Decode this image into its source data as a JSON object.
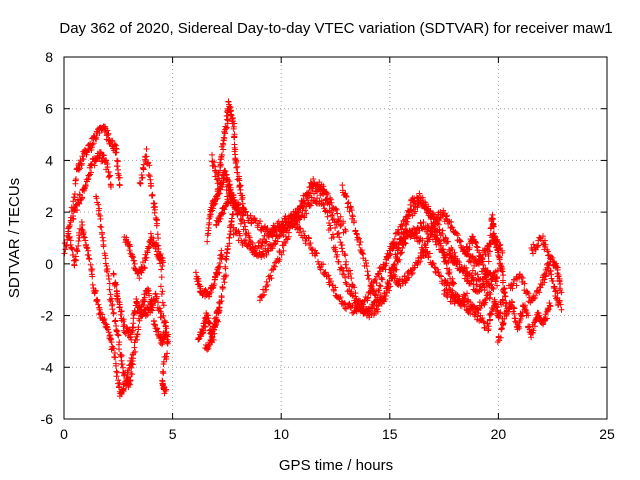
{
  "chart_data": {
    "type": "scatter",
    "title": "Day 362 of 2020, Sidereal Day-to-day VTEC variation (SDTVAR) for receiver maw1",
    "xlabel": "GPS time / hours",
    "ylabel": "SDTVAR / TECUs",
    "xlim": [
      0,
      25
    ],
    "ylim": [
      -6,
      8
    ],
    "x_ticks": [
      0,
      5,
      10,
      15,
      20,
      25
    ],
    "y_ticks": [
      -6,
      -4,
      -2,
      0,
      2,
      4,
      6,
      8
    ],
    "x_tick_labels": [
      "0",
      "5",
      "10",
      "15",
      "20",
      "25"
    ],
    "y_tick_labels": [
      "-6",
      "-4",
      "-2",
      "0",
      "2",
      "4",
      "6",
      "8"
    ],
    "grid": true,
    "marker": "+",
    "color": "#ff0000",
    "series": [
      {
        "name": "maw1",
        "approx_tracks": [
          [
            [
              0.0,
              0.5
            ],
            [
              0.3,
              1.5
            ],
            [
              0.6,
              3.5
            ],
            [
              0.9,
              4.2
            ],
            [
              1.2,
              4.5
            ],
            [
              1.5,
              5.0
            ],
            [
              1.8,
              5.3
            ],
            [
              2.1,
              4.8
            ],
            [
              2.4,
              4.4
            ],
            [
              2.6,
              3.0
            ]
          ],
          [
            [
              0.4,
              1.8
            ],
            [
              0.7,
              2.5
            ],
            [
              1.0,
              3.0
            ],
            [
              1.3,
              3.9
            ],
            [
              1.6,
              4.2
            ],
            [
              1.9,
              4.0
            ],
            [
              2.2,
              3.0
            ]
          ],
          [
            [
              0.2,
              1.2
            ],
            [
              0.5,
              0.0
            ],
            [
              0.8,
              1.5
            ],
            [
              1.1,
              0.5
            ],
            [
              1.4,
              -1.0
            ],
            [
              1.7,
              -2.0
            ],
            [
              2.0,
              -2.5
            ],
            [
              2.3,
              -3.5
            ],
            [
              2.6,
              -5.0
            ],
            [
              2.9,
              -4.5
            ],
            [
              3.2,
              -3.5
            ]
          ],
          [
            [
              1.5,
              2.5
            ],
            [
              1.8,
              1.0
            ],
            [
              2.1,
              -1.0
            ],
            [
              2.4,
              -2.5
            ],
            [
              2.7,
              -4.0
            ],
            [
              3.0,
              -4.8
            ],
            [
              3.3,
              -3.0
            ],
            [
              3.6,
              -1.5
            ],
            [
              3.9,
              -1.0
            ],
            [
              4.2,
              -2.5
            ],
            [
              4.5,
              -3.0
            ],
            [
              4.7,
              -2.5
            ]
          ],
          [
            [
              2.8,
              1.0
            ],
            [
              3.1,
              0.5
            ],
            [
              3.4,
              -0.5
            ],
            [
              3.7,
              0.0
            ],
            [
              4.0,
              1.0
            ],
            [
              4.3,
              0.5
            ],
            [
              4.6,
              0.0
            ]
          ],
          [
            [
              3.5,
              3.0
            ],
            [
              3.8,
              4.3
            ],
            [
              4.1,
              2.5
            ],
            [
              4.3,
              1.5
            ],
            [
              4.6,
              -2.0
            ],
            [
              4.8,
              -3.0
            ],
            [
              4.5,
              -4.5
            ],
            [
              4.7,
              -5.0
            ]
          ],
          [
            [
              2.3,
              -0.5
            ],
            [
              2.5,
              -1.5
            ],
            [
              2.8,
              -2.5
            ],
            [
              3.1,
              -2.8
            ],
            [
              3.3,
              -1.5
            ],
            [
              3.6,
              -2.0
            ],
            [
              3.9,
              -1.8
            ],
            [
              4.2,
              -1.2
            ],
            [
              4.5,
              -2.2
            ]
          ],
          [
            [
              6.1,
              -0.5
            ],
            [
              6.3,
              -1.0
            ],
            [
              6.6,
              -1.2
            ],
            [
              6.9,
              -0.8
            ],
            [
              7.1,
              -0.3
            ],
            [
              7.3,
              0.5
            ]
          ],
          [
            [
              6.2,
              -3.0
            ],
            [
              6.4,
              -2.5
            ],
            [
              6.6,
              -2.0
            ],
            [
              6.8,
              -2.8
            ],
            [
              7.0,
              -2.2
            ],
            [
              7.2,
              -1.5
            ]
          ],
          [
            [
              6.5,
              -3.3
            ],
            [
              6.8,
              -3.0
            ],
            [
              7.1,
              -2.0
            ],
            [
              7.4,
              -0.5
            ],
            [
              7.6,
              1.0
            ],
            [
              7.8,
              2.0
            ]
          ],
          [
            [
              6.6,
              1.0
            ],
            [
              6.8,
              2.2
            ],
            [
              7.0,
              2.5
            ],
            [
              7.2,
              3.0
            ],
            [
              7.4,
              3.5
            ],
            [
              7.6,
              3.0
            ],
            [
              7.8,
              2.5
            ],
            [
              8.0,
              2.0
            ]
          ],
          [
            [
              6.8,
              4.1
            ],
            [
              7.1,
              3.2
            ],
            [
              7.3,
              4.5
            ],
            [
              7.5,
              5.5
            ],
            [
              7.6,
              6.2
            ],
            [
              7.8,
              5.5
            ],
            [
              7.9,
              4.0
            ],
            [
              8.1,
              3.0
            ],
            [
              8.3,
              2.0
            ]
          ],
          [
            [
              7.0,
              1.5
            ],
            [
              7.3,
              2.0
            ],
            [
              7.6,
              2.5
            ],
            [
              8.0,
              2.2
            ],
            [
              8.5,
              1.8
            ],
            [
              9.0,
              1.5
            ],
            [
              9.5,
              1.2
            ],
            [
              10.0,
              1.3
            ],
            [
              10.5,
              1.6
            ],
            [
              11.0,
              1.9
            ],
            [
              11.5,
              2.6
            ],
            [
              12.0,
              2.2
            ],
            [
              12.5,
              0.5
            ],
            [
              13.0,
              -0.8
            ],
            [
              13.5,
              -1.6
            ],
            [
              14.0,
              -1.9
            ],
            [
              14.5,
              -1.7
            ],
            [
              15.0,
              -0.8
            ],
            [
              15.5,
              0.5
            ],
            [
              16.0,
              1.3
            ],
            [
              16.5,
              1.5
            ],
            [
              17.0,
              1.1
            ],
            [
              17.5,
              0.4
            ],
            [
              18.0,
              0.0
            ],
            [
              18.5,
              -0.3
            ],
            [
              19.0,
              -0.5
            ],
            [
              19.5,
              -0.4
            ],
            [
              20.0,
              -0.7
            ]
          ],
          [
            [
              7.5,
              2.8
            ],
            [
              8.0,
              2.0
            ],
            [
              8.5,
              1.0
            ],
            [
              9.0,
              0.3
            ],
            [
              9.5,
              0.6
            ],
            [
              10.0,
              1.2
            ],
            [
              10.5,
              1.8
            ],
            [
              11.0,
              2.3
            ],
            [
              11.5,
              3.0
            ],
            [
              12.0,
              2.7
            ],
            [
              12.5,
              1.5
            ],
            [
              13.0,
              0.0
            ],
            [
              13.5,
              -1.5
            ],
            [
              14.0,
              -2.0
            ],
            [
              14.5,
              -1.0
            ],
            [
              15.0,
              0.5
            ],
            [
              15.5,
              1.5
            ],
            [
              16.0,
              2.0
            ],
            [
              16.5,
              2.4
            ],
            [
              17.0,
              1.8
            ],
            [
              17.5,
              1.0
            ],
            [
              18.0,
              0.2
            ],
            [
              18.5,
              -0.5
            ],
            [
              19.0,
              -1.0
            ],
            [
              19.5,
              -0.8
            ],
            [
              20.0,
              -0.3
            ]
          ],
          [
            [
              7.8,
              1.3
            ],
            [
              8.3,
              0.8
            ],
            [
              8.8,
              0.5
            ],
            [
              9.3,
              1.0
            ],
            [
              9.8,
              1.5
            ],
            [
              10.3,
              1.8
            ],
            [
              10.8,
              1.4
            ],
            [
              11.3,
              0.8
            ],
            [
              11.8,
              0.0
            ],
            [
              12.3,
              -0.8
            ],
            [
              12.8,
              -1.5
            ],
            [
              13.3,
              -1.8
            ],
            [
              13.8,
              -1.5
            ],
            [
              14.3,
              -0.8
            ],
            [
              14.8,
              0.2
            ],
            [
              15.3,
              0.8
            ],
            [
              15.8,
              1.2
            ],
            [
              16.3,
              1.0
            ],
            [
              16.8,
              0.3
            ],
            [
              17.3,
              -0.5
            ],
            [
              17.8,
              -1.0
            ],
            [
              18.3,
              -1.5
            ],
            [
              18.8,
              -1.8
            ],
            [
              19.3,
              -1.5
            ],
            [
              19.8,
              -1.0
            ]
          ],
          [
            [
              9.0,
              -1.5
            ],
            [
              9.5,
              -0.5
            ],
            [
              10.0,
              0.5
            ],
            [
              10.5,
              1.5
            ],
            [
              11.0,
              2.5
            ],
            [
              11.5,
              3.2
            ],
            [
              12.0,
              2.8
            ],
            [
              12.5,
              2.0
            ],
            [
              13.0,
              1.2
            ]
          ],
          [
            [
              12.8,
              3.0
            ],
            [
              13.2,
              2.0
            ],
            [
              13.6,
              0.8
            ],
            [
              14.0,
              -0.5
            ],
            [
              14.4,
              -1.5
            ],
            [
              14.8,
              -1.2
            ],
            [
              15.2,
              0.0
            ],
            [
              15.6,
              1.2
            ],
            [
              16.0,
              2.4
            ],
            [
              16.4,
              2.6
            ],
            [
              16.8,
              2.0
            ],
            [
              17.2,
              1.0
            ],
            [
              17.6,
              0.0
            ],
            [
              18.0,
              -1.0
            ]
          ],
          [
            [
              15.0,
              -0.3
            ],
            [
              15.4,
              -0.8
            ],
            [
              15.8,
              -0.5
            ],
            [
              16.2,
              0.0
            ],
            [
              16.6,
              0.5
            ],
            [
              17.0,
              1.5
            ],
            [
              17.4,
              2.0
            ],
            [
              17.8,
              1.5
            ],
            [
              18.2,
              0.8
            ],
            [
              18.6,
              0.3
            ],
            [
              19.0,
              0.0
            ],
            [
              19.4,
              0.5
            ],
            [
              19.8,
              1.0
            ],
            [
              20.2,
              0.5
            ]
          ],
          [
            [
              17.5,
              -1.0
            ],
            [
              18.0,
              -1.5
            ],
            [
              18.5,
              -1.2
            ],
            [
              19.0,
              -2.0
            ],
            [
              19.5,
              -2.5
            ],
            [
              19.8,
              -1.5
            ],
            [
              20.0,
              -2.0
            ],
            [
              20.3,
              -1.0
            ]
          ],
          [
            [
              18.5,
              0.5
            ],
            [
              18.8,
              1.0
            ],
            [
              19.2,
              0.2
            ],
            [
              19.5,
              -0.5
            ],
            [
              19.7,
              2.0
            ],
            [
              19.8,
              1.0
            ],
            [
              20.0,
              0.5
            ],
            [
              20.2,
              -0.5
            ],
            [
              20.4,
              -2.0
            ]
          ],
          [
            [
              20.0,
              -3.0
            ],
            [
              20.3,
              -2.0
            ],
            [
              20.6,
              -1.5
            ],
            [
              20.9,
              -2.5
            ],
            [
              21.2,
              -1.5
            ],
            [
              21.5,
              -2.8
            ],
            [
              21.8,
              -2.0
            ],
            [
              22.1,
              -2.2
            ],
            [
              22.4,
              -1.5
            ]
          ],
          [
            [
              20.5,
              -1.0
            ],
            [
              21.0,
              -0.5
            ],
            [
              21.5,
              -1.5
            ],
            [
              22.0,
              -0.8
            ],
            [
              22.3,
              0.0
            ],
            [
              22.6,
              -1.0
            ],
            [
              22.9,
              -1.8
            ]
          ],
          [
            [
              21.5,
              0.5
            ],
            [
              22.0,
              1.0
            ],
            [
              22.4,
              0.2
            ],
            [
              22.7,
              -0.2
            ],
            [
              22.9,
              -1.0
            ]
          ]
        ]
      }
    ]
  }
}
